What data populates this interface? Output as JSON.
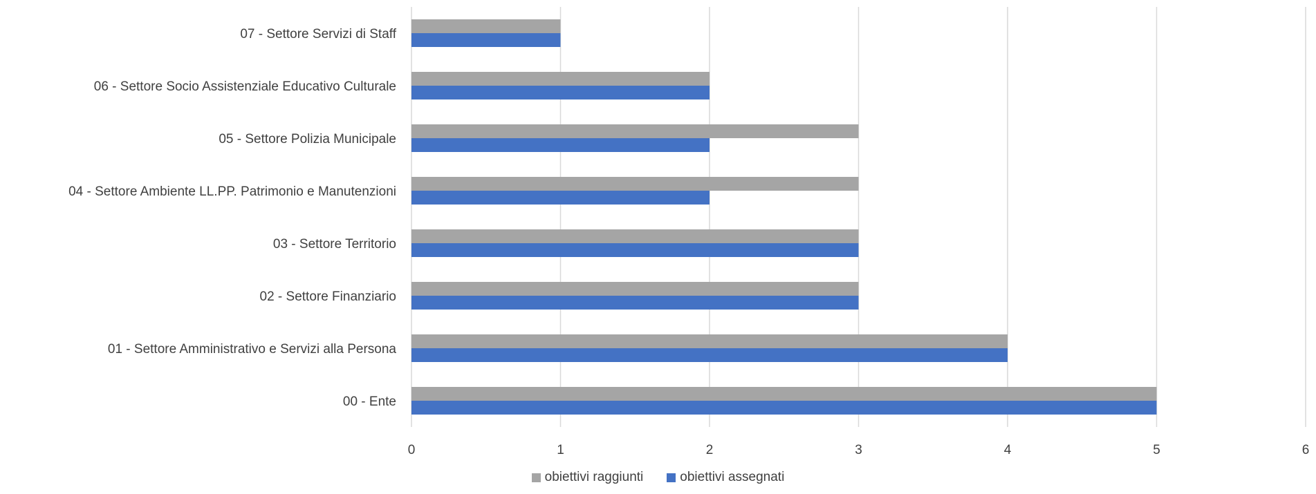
{
  "chart_data": {
    "type": "bar",
    "orientation": "horizontal",
    "categories": [
      "07 - Settore Servizi di Staff",
      "06 - Settore Socio Assistenziale Educativo Culturale",
      "05 - Settore Polizia Municipale",
      "04 - Settore Ambiente LL.PP. Patrimonio e Manutenzioni",
      "03 - Settore Territorio",
      "02 - Settore Finanziario",
      "01 - Settore Amministrativo e Servizi alla Persona",
      "00 - Ente"
    ],
    "series": [
      {
        "name": "obiettivi raggiunti",
        "color": "#a5a5a5",
        "values": [
          1,
          2,
          3,
          3,
          3,
          3,
          4,
          5
        ]
      },
      {
        "name": "obiettivi assegnati",
        "color": "#4472c4",
        "values": [
          1,
          2,
          2,
          2,
          3,
          3,
          4,
          5
        ]
      }
    ],
    "xlim": [
      0,
      6
    ],
    "ticks": [
      "0",
      "1",
      "2",
      "3",
      "4",
      "5",
      "6"
    ],
    "grid": true,
    "legend_position": "bottom"
  }
}
